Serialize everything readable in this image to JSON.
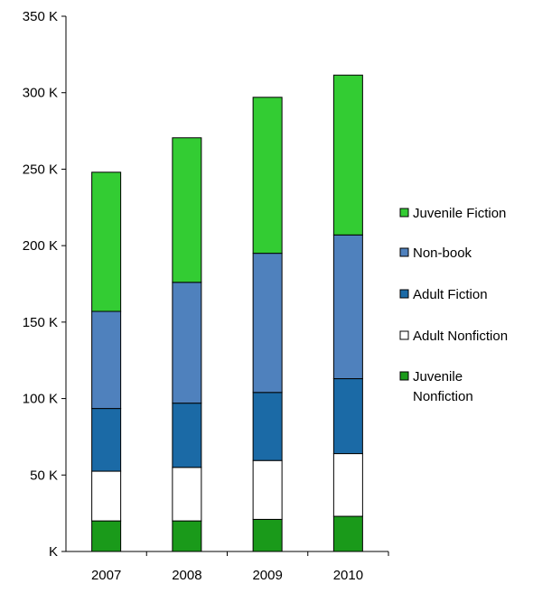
{
  "chart_data": {
    "type": "bar",
    "stacked": true,
    "categories": [
      "2007",
      "2008",
      "2009",
      "2010"
    ],
    "series": [
      {
        "name": "Juvenile Nonfiction",
        "color": "#1a9a1a",
        "values": [
          20000,
          20000,
          21000,
          23000
        ]
      },
      {
        "name": "Adult Nonfiction",
        "color": "#ffffff",
        "values": [
          32500,
          35000,
          38500,
          41000
        ]
      },
      {
        "name": "Adult Fiction",
        "color": "#1b6aa6",
        "values": [
          41000,
          42000,
          44500,
          49000
        ]
      },
      {
        "name": "Non-book",
        "color": "#4f81bd",
        "values": [
          63500,
          79000,
          91000,
          94000
        ]
      },
      {
        "name": "Juvenile Fiction",
        "color": "#33cc33",
        "values": [
          91000,
          94500,
          102000,
          104500
        ]
      }
    ],
    "ylim": [
      0,
      350000
    ],
    "yticks": [
      0,
      50000,
      100000,
      150000,
      200000,
      250000,
      300000,
      350000
    ],
    "ytick_labels": [
      "K",
      "50 K",
      "100 K",
      "150 K",
      "200 K",
      "250 K",
      "300 K",
      "350 K"
    ],
    "legend_order": [
      "Juvenile Fiction",
      "Non-book",
      "Adult Fiction",
      "Adult Nonfiction",
      "Juvenile Nonfiction"
    ],
    "legend_label_lines": {
      "Juvenile Nonfiction": [
        "Juvenile",
        "Nonfiction"
      ]
    },
    "legend_position": "right",
    "grid": false,
    "title": "",
    "xlabel": "",
    "ylabel": ""
  }
}
